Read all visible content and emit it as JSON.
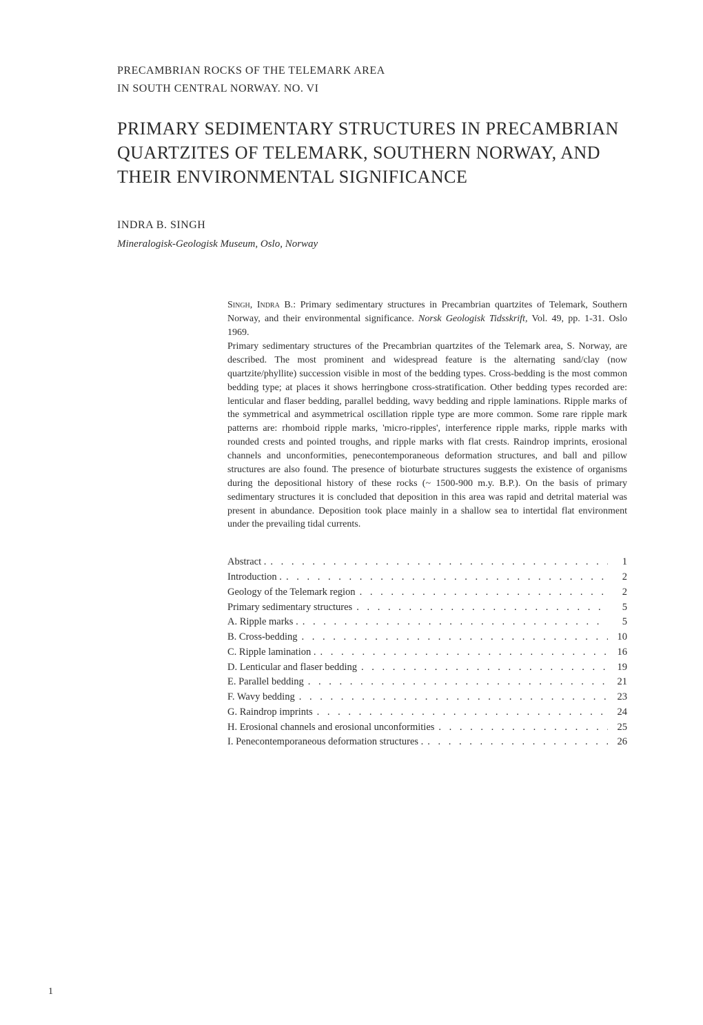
{
  "preTitle": {
    "line1": "PRECAMBRIAN ROCKS OF THE TELEMARK AREA",
    "line2": "IN SOUTH CENTRAL NORWAY. NO. VI"
  },
  "mainTitle": "PRIMARY SEDIMENTARY STRUCTURES IN PRECAMBRIAN QUARTZITES OF TELEMARK, SOUTHERN NORWAY, AND THEIR ENVIRONMENTAL SIGNIFICANCE",
  "author": "INDRA B. SINGH",
  "affiliation": "Mineralogisk-Geologisk Museum, Oslo, Norway",
  "abstractCitation": {
    "authorSc": "Singh, Indra B.",
    "rest1": ": Primary sedimentary structures in Precambrian quartzites of Telemark, Southern Norway, and their environmental significance. ",
    "journalItalic": "Norsk Geologisk Tidsskrift,",
    "rest2": " Vol. 49, pp. 1-31. Oslo 1969."
  },
  "abstractBody": "Primary sedimentary structures of the Precambrian quartzites of the Telemark area, S. Norway, are described. The most prominent and widespread feature is the alternating sand/clay (now quartzite/phyllite) succession visible in most of the bedding types. Cross-bedding is the most common bedding type; at places it shows herringbone cross-stratification. Other bedding types recorded are: lenticular and flaser bedding, parallel bedding, wavy bedding and ripple laminations. Ripple marks of the symmetrical and asymmetrical oscillation ripple type are more common. Some rare ripple mark patterns are: rhomboid ripple marks, 'micro-ripples', interference ripple marks, ripple marks with rounded crests and pointed troughs, and ripple marks with flat crests. Raindrop imprints, erosional channels and unconformities, penecontemporaneous deformation structures, and ball and pillow structures are also found. The presence of bioturbate structures suggests the existence of organisms during the depositional history of these rocks (~ 1500-900 m.y. B.P.). On the basis of primary sedimentary structures it is concluded that deposition in this area was rapid and detrital material was present in abundance. Deposition took place mainly in a shallow sea to intertidal flat environment under the prevailing tidal currents.",
  "toc": [
    {
      "label": "Abstract .",
      "page": "1"
    },
    {
      "label": "Introduction .",
      "page": "2"
    },
    {
      "label": "Geology of the Telemark region",
      "page": "2"
    },
    {
      "label": "Primary sedimentary structures",
      "page": "5"
    },
    {
      "label": "A. Ripple marks .",
      "page": "5"
    },
    {
      "label": "B. Cross-bedding",
      "page": "10"
    },
    {
      "label": "C. Ripple lamination .",
      "page": "16"
    },
    {
      "label": "D. Lenticular and flaser bedding",
      "page": "19"
    },
    {
      "label": "E. Parallel bedding",
      "page": "21"
    },
    {
      "label": "F. Wavy bedding",
      "page": "23"
    },
    {
      "label": "G. Raindrop imprints",
      "page": "24"
    },
    {
      "label": "H. Erosional channels and erosional unconformities",
      "page": "25"
    },
    {
      "label": "I.  Penecontemporaneous deformation structures .",
      "page": "26"
    }
  ],
  "dotsFill": ". . . . . . . . . . . . . . . . . . . . . . . . . . . . . . . . . . . . . . . . . . . . . . . . . . . . . . . . . . . . . . . . . . . .",
  "pageNumber": "1",
  "style": {
    "pageWidth": 1020,
    "pageHeight": 1487,
    "background": "#ffffff",
    "textColor": "#2b2b2b",
    "preTitleFontSize": 16,
    "mainTitleFontSize": 26,
    "authorFontSize": 16,
    "affiliationFontSize": 15,
    "abstractFontSize": 14,
    "tocFontSize": 14.5,
    "abstractLeftIndent": 160,
    "tocLeftIndent": 160
  }
}
